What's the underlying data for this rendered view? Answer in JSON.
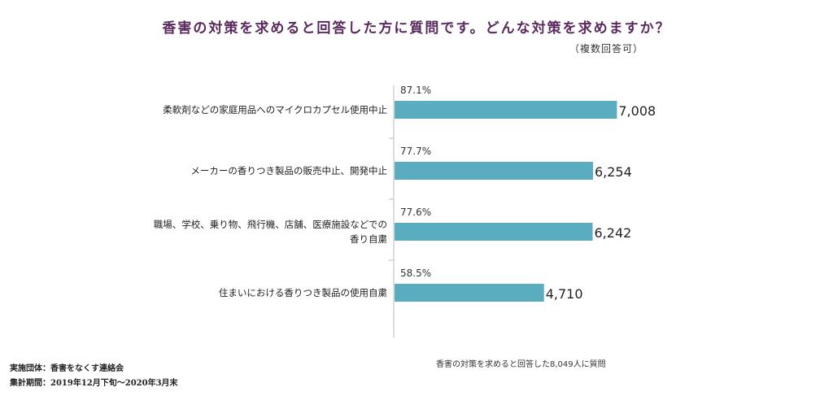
{
  "title": "香害の対策を求めると回答した方に質問です。どんな対策を求めますか？",
  "subtitle": "（複数回答可）",
  "chart_data": {
    "type": "bar",
    "orientation": "horizontal",
    "categories": [
      [
        "柔軟剤などの家庭用品へのマイクロカプセル使用中止"
      ],
      [
        "メーカーの香りつき製品の販売中止、開発中止"
      ],
      [
        "職場、学校、乗り物、飛行機、店舗、医療施設などでの",
        "香り自粛"
      ],
      [
        "住まいにおける香りつき製品の使用自粛"
      ]
    ],
    "values": [
      7008,
      6254,
      6242,
      4710
    ],
    "value_labels": [
      "7,008",
      "6,254",
      "6,242",
      "4,710"
    ],
    "percent_labels": [
      "87.1%",
      "77.7%",
      "77.6%",
      "58.5%"
    ],
    "xlim": [
      0,
      8049
    ],
    "bar_color": "#5aacbf",
    "grid": false,
    "legend": "none"
  },
  "footer": {
    "org": "実施団体：香害をなくす連絡会",
    "period": "集計期間：2019年12月下旬～2020年3月末",
    "note": "香害の対策を求めると回答した8,049人に質問"
  }
}
